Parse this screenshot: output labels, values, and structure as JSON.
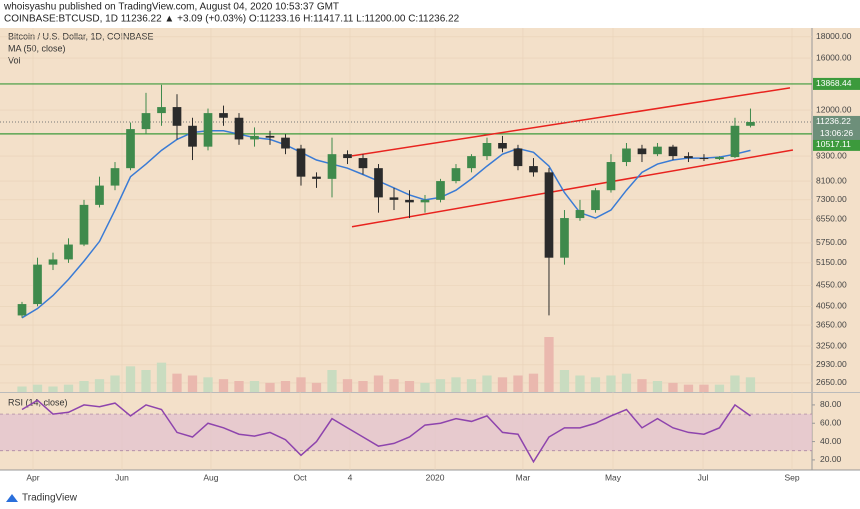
{
  "header": {
    "line1": "whoisyashu published on TradingView.com, August 04, 2020 10:53:37 GMT",
    "line2": "COINBASE:BTCUSD, 1D 11236.22 ▲ +3.09 (+0.03%) O:11233.16 H:11417.11 L:11200.00 C:11236.22"
  },
  "footer": "TradingView",
  "chart_data": {
    "type": "candlestick",
    "title": "Bitcoin / U.S. Dollar, 1D, COINBASE",
    "ma_label": "MA (50, close)",
    "volume_label": "Vol",
    "log": true,
    "grid": true,
    "up_color": "#3f8a4c",
    "down_color": "#2b2b2b",
    "ma_color": "#3a7bd5",
    "level_color": "#3c9a3c",
    "trend_color": "#e8231e",
    "categories": [
      null,
      null,
      null,
      null,
      null,
      null,
      null,
      null,
      null,
      null,
      null,
      null,
      null,
      null,
      null,
      null,
      null,
      null,
      null,
      null,
      null,
      null,
      null,
      null,
      null,
      null,
      null,
      null,
      null,
      null,
      null,
      null,
      null,
      null,
      null,
      null,
      null,
      null,
      null,
      null,
      null,
      null,
      null,
      null,
      null,
      null,
      null,
      null
    ],
    "open": [
      3850,
      4100,
      5100,
      5250,
      5700,
      7100,
      7900,
      8700,
      10800,
      11800,
      12200,
      11000,
      9800,
      11800,
      11500,
      10200,
      10400,
      10300,
      9700,
      8300,
      8200,
      9400,
      9200,
      8700,
      7400,
      7300,
      7200,
      7300,
      8100,
      8700,
      9300,
      10000,
      9700,
      8800,
      8500,
      5300,
      6600,
      6900,
      7700,
      9000,
      9700,
      9400,
      9800,
      9300,
      9200,
      9150,
      9250,
      11000
    ],
    "high": [
      4150,
      5300,
      5450,
      5900,
      7300,
      8300,
      9000,
      11200,
      13200,
      13800,
      13100,
      11500,
      12100,
      12300,
      11800,
      10900,
      10700,
      10500,
      9900,
      8500,
      10300,
      9600,
      9400,
      8900,
      7800,
      7700,
      7500,
      8200,
      8900,
      9400,
      10300,
      10400,
      9900,
      9200,
      8700,
      6900,
      7300,
      7800,
      9400,
      10000,
      9900,
      10000,
      9900,
      9500,
      9400,
      9300,
      11500,
      12100
    ],
    "low": [
      3800,
      4050,
      4950,
      5150,
      5650,
      7000,
      7700,
      8600,
      10500,
      11000,
      10200,
      9100,
      9600,
      11000,
      9900,
      9800,
      9900,
      9400,
      7900,
      7800,
      7400,
      8900,
      8400,
      6800,
      6900,
      6600,
      6800,
      7200,
      8000,
      8500,
      9100,
      9500,
      8600,
      8300,
      3850,
      5100,
      6500,
      6800,
      7600,
      8800,
      9000,
      9300,
      9100,
      9000,
      9050,
      9100,
      9200,
      10900
    ],
    "close": [
      4100,
      5100,
      5250,
      5700,
      7100,
      7900,
      8700,
      10800,
      11800,
      12200,
      11000,
      9800,
      11800,
      11500,
      10200,
      10400,
      10300,
      9700,
      8300,
      8200,
      9400,
      9200,
      8700,
      7400,
      7300,
      7200,
      7300,
      8100,
      8700,
      9300,
      10000,
      9700,
      8800,
      8500,
      5300,
      6600,
      6900,
      7700,
      9000,
      9700,
      9400,
      9800,
      9300,
      9200,
      9150,
      9250,
      11000,
      11236.22
    ],
    "ma": [
      3800,
      4000,
      4300,
      4700,
      5200,
      5800,
      6900,
      8300,
      8900,
      9600,
      10200,
      10600,
      10700,
      10700,
      10500,
      10300,
      10200,
      9900,
      9500,
      9100,
      8900,
      8700,
      8400,
      8100,
      7800,
      7500,
      7300,
      7400,
      7700,
      8200,
      8800,
      9400,
      9700,
      9500,
      8800,
      7600,
      6800,
      6600,
      6900,
      7700,
      8500,
      8900,
      9100,
      9200,
      9200,
      9250,
      9400,
      9600
    ],
    "volume": [
      3,
      4,
      3,
      4,
      6,
      7,
      9,
      14,
      12,
      16,
      10,
      9,
      8,
      7,
      6,
      6,
      5,
      6,
      8,
      5,
      12,
      7,
      6,
      9,
      7,
      6,
      5,
      7,
      8,
      7,
      9,
      8,
      9,
      10,
      30,
      12,
      9,
      8,
      9,
      10,
      7,
      6,
      5,
      4,
      4,
      4,
      9,
      8
    ],
    "xlim": [
      -1.42,
      50.97
    ],
    "xticks": [
      {
        "value": 0.71,
        "label": "Apr"
      },
      {
        "value": 6.45,
        "label": "Jun"
      },
      {
        "value": 12.19,
        "label": "Aug"
      },
      {
        "value": 17.94,
        "label": "Oct"
      },
      {
        "value": 21.16,
        "label": "4"
      },
      {
        "value": 26.65,
        "label": "2020"
      },
      {
        "value": 32.32,
        "label": "Mar"
      },
      {
        "value": 38.13,
        "label": "May"
      },
      {
        "value": 43.94,
        "label": "Jul"
      },
      {
        "value": 49.68,
        "label": "Sep"
      }
    ],
    "ylim": [
      2520,
      18900
    ],
    "yticks": [
      {
        "value": 18000,
        "label": "18000.00"
      },
      {
        "value": 16000,
        "label": "16000.00"
      },
      {
        "value": 12000,
        "label": "12000.00"
      },
      {
        "value": 9300,
        "label": "9300.00"
      },
      {
        "value": 8100,
        "label": "8100.00"
      },
      {
        "value": 7300,
        "label": "7300.00"
      },
      {
        "value": 6550,
        "label": "6550.00"
      },
      {
        "value": 5750,
        "label": "5750.00"
      },
      {
        "value": 5150,
        "label": "5150.00"
      },
      {
        "value": 4550,
        "label": "4550.00"
      },
      {
        "value": 4050,
        "label": "4050.00"
      },
      {
        "value": 3650,
        "label": "3650.00"
      },
      {
        "value": 3250,
        "label": "3250.00"
      },
      {
        "value": 2930,
        "label": "2930.00"
      },
      {
        "value": 2650,
        "label": "2650.00"
      }
    ],
    "levels": [
      13868.44,
      10517.11
    ],
    "last_price": 11236.22,
    "countdown": "13:06:26",
    "trendlines": [
      {
        "x": [
          21.29,
          49.55
        ],
        "y": [
          9310,
          13570
        ]
      },
      {
        "x": [
          21.29,
          49.74
        ],
        "y": [
          6290,
          9620
        ]
      }
    ],
    "rsi": {
      "label": "RSI (14, close)",
      "color": "#8e44ad",
      "values": [
        75,
        85,
        70,
        72,
        80,
        78,
        82,
        68,
        80,
        75,
        50,
        45,
        60,
        55,
        48,
        46,
        50,
        42,
        25,
        40,
        65,
        55,
        45,
        35,
        38,
        45,
        58,
        60,
        65,
        62,
        68,
        50,
        48,
        18,
        45,
        55,
        55,
        60,
        68,
        75,
        55,
        65,
        55,
        50,
        48,
        55,
        80,
        68
      ],
      "ylim": [
        9,
        93
      ],
      "band": [
        30,
        70
      ],
      "yticks": [
        {
          "value": 80,
          "label": "80.00"
        },
        {
          "value": 60,
          "label": "60.00"
        },
        {
          "value": 40,
          "label": "40.00"
        },
        {
          "value": 20,
          "label": "20.00"
        }
      ]
    }
  }
}
